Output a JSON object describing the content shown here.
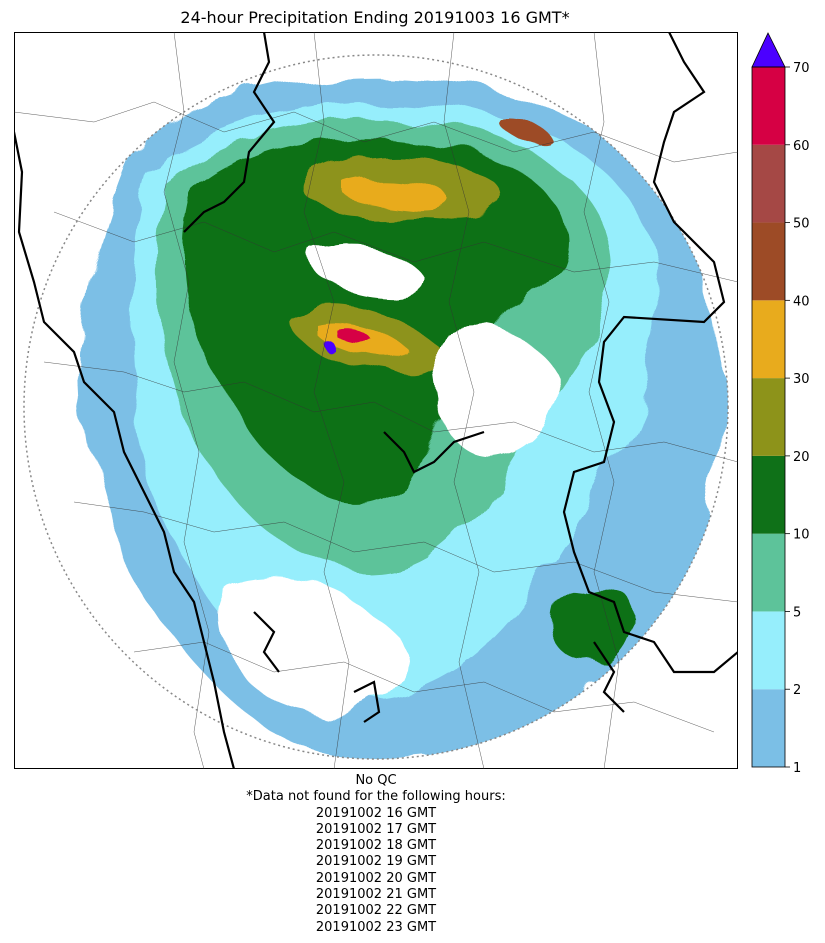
{
  "title": "24-hour Precipitation Ending 20191003 16 GMT*",
  "colorbar": {
    "levels": [
      1,
      2,
      5,
      10,
      20,
      30,
      40,
      50,
      60,
      70
    ],
    "colors": [
      "#7bbfe6",
      "#96eefc",
      "#5dc39a",
      "#0f7118",
      "#8d931a",
      "#e8ab1d",
      "#9d4b26",
      "#a54845",
      "#d60044"
    ],
    "extend_color": "#4b00ff",
    "extend": "max"
  },
  "map": {
    "radar_range": "dotted circle",
    "land_color": "#ffffff",
    "border_color": "#000000"
  },
  "notes": {
    "qc": "No QC",
    "missing_header": "*Data not found for the following hours:",
    "missing_hours": [
      "20191002 16 GMT",
      "20191002 17 GMT",
      "20191002 18 GMT",
      "20191002 19 GMT",
      "20191002 20 GMT",
      "20191002 21 GMT",
      "20191002 22 GMT",
      "20191002 23 GMT"
    ]
  }
}
